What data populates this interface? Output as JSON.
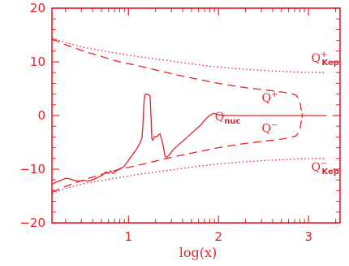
{
  "chart_data": {
    "type": "line",
    "title": "",
    "xlabel": "log(x)",
    "ylabel": "",
    "xlim": [
      0.15,
      3.35
    ],
    "ylim": [
      -20,
      20
    ],
    "xticks": [
      1,
      2,
      3
    ],
    "xtick_labels": [
      "1",
      "2",
      "3"
    ],
    "yticks": [
      -20,
      -10,
      0,
      10,
      20
    ],
    "ytick_labels": [
      "−20",
      "−10",
      "0",
      "10",
      "20"
    ],
    "grid": false,
    "legend": "none",
    "color": "#e8202a",
    "series": [
      {
        "key": "qkep_plus",
        "style": "dotted",
        "x": [
          0.15,
          0.3,
          0.5,
          0.8,
          1.1,
          1.4,
          1.7,
          2.0,
          2.3,
          2.6,
          2.8,
          2.95,
          3.1,
          3.2
        ],
        "y": [
          14.5,
          13.6,
          12.7,
          11.8,
          11.0,
          10.3,
          9.6,
          9.0,
          8.6,
          8.3,
          8.15,
          8.05,
          8.0,
          8.0
        ]
      },
      {
        "key": "qkep_minus",
        "style": "dotted",
        "x": [
          0.15,
          0.3,
          0.5,
          0.8,
          1.1,
          1.4,
          1.7,
          2.0,
          2.3,
          2.6,
          2.8,
          2.95,
          3.1,
          3.2
        ],
        "y": [
          -14.5,
          -13.6,
          -12.7,
          -11.8,
          -11.0,
          -10.3,
          -9.6,
          -9.0,
          -8.6,
          -8.3,
          -8.15,
          -8.05,
          -8.0,
          -8.0
        ]
      },
      {
        "key": "q_plus",
        "style": "dashed",
        "x": [
          0.15,
          0.3,
          0.5,
          0.7,
          0.9,
          1.1,
          1.3,
          1.5,
          1.7,
          1.9,
          2.1,
          2.3,
          2.5,
          2.7,
          2.8,
          2.86,
          2.88,
          2.9,
          2.91,
          2.92,
          2.93
        ],
        "y": [
          14.3,
          13.2,
          12.0,
          11.0,
          10.0,
          9.3,
          8.5,
          7.7,
          7.0,
          6.3,
          5.7,
          5.2,
          4.8,
          4.4,
          4.1,
          3.8,
          3.4,
          2.8,
          2.0,
          1.0,
          -0.4
        ]
      },
      {
        "key": "q_minus",
        "style": "dashed",
        "x": [
          0.15,
          0.3,
          0.5,
          0.7,
          0.9,
          1.1,
          1.3,
          1.5,
          1.7,
          1.9,
          2.1,
          2.3,
          2.5,
          2.7,
          2.8,
          2.86,
          2.88,
          2.9,
          2.91,
          2.92,
          2.93
        ],
        "y": [
          -14.3,
          -13.2,
          -12.0,
          -11.0,
          -10.0,
          -9.3,
          -8.5,
          -7.7,
          -7.0,
          -6.3,
          -5.7,
          -5.2,
          -4.8,
          -4.4,
          -4.1,
          -3.8,
          -3.4,
          -2.8,
          -2.0,
          -1.0,
          0.4
        ]
      },
      {
        "key": "q_nuc",
        "style": "solid",
        "x": [
          0.15,
          0.2,
          0.25,
          0.3,
          0.35,
          0.4,
          0.45,
          0.5,
          0.55,
          0.6,
          0.65,
          0.7,
          0.75,
          0.78,
          0.8,
          0.83,
          0.86,
          0.88,
          0.9,
          0.93,
          0.96,
          1.0,
          1.05,
          1.1,
          1.13,
          1.15,
          1.16,
          1.17,
          1.18,
          1.2,
          1.22,
          1.24,
          1.25,
          1.26,
          1.27,
          1.28,
          1.29,
          1.31,
          1.33,
          1.35,
          1.37,
          1.39,
          1.4,
          1.41,
          1.42,
          1.45,
          1.5,
          1.6,
          1.7,
          1.8,
          1.85,
          1.9,
          1.93,
          1.95,
          1.97,
          2.0,
          2.1,
          2.3,
          2.5,
          2.7,
          2.9,
          3.1,
          3.2
        ],
        "y": [
          -12.8,
          -12.4,
          -12.1,
          -11.7,
          -11.8,
          -12.1,
          -12.2,
          -12.1,
          -12.2,
          -12.0,
          -11.6,
          -11.2,
          -10.5,
          -10.8,
          -10.3,
          -10.8,
          -10.3,
          -10.2,
          -9.9,
          -9.7,
          -9.3,
          -8.3,
          -7.2,
          -6.0,
          -5.0,
          -4.2,
          -2.0,
          2.0,
          3.8,
          4.0,
          3.9,
          3.6,
          0.0,
          -4.3,
          -4.6,
          -4.2,
          -3.9,
          -4.0,
          -3.7,
          -3.4,
          -4.5,
          -6.0,
          -7.2,
          -7.6,
          -7.8,
          -7.4,
          -6.3,
          -4.8,
          -3.3,
          -1.8,
          -0.8,
          0.0,
          0.3,
          0.4,
          0.3,
          0.1,
          0.0,
          0.0,
          0.0,
          0.0,
          0.0,
          0.0,
          0.0
        ]
      }
    ],
    "annotations": [
      {
        "key": "qkep_plus",
        "main": "Q",
        "sup": "+",
        "sub": "Kep",
        "x": 3.03,
        "y": 10.0
      },
      {
        "key": "q_plus",
        "main": "Q",
        "sup": "+",
        "sub": "",
        "x": 2.48,
        "y": 2.6
      },
      {
        "key": "q_nuc",
        "main": "Q",
        "sup": "",
        "sub": "nuc",
        "x": 1.96,
        "y": -0.9
      },
      {
        "key": "q_minus",
        "main": "Q",
        "sup": "−",
        "sub": "",
        "x": 2.48,
        "y": -3.1
      },
      {
        "key": "qkep_minus",
        "main": "Q",
        "sup": "−",
        "sub": "Kep",
        "x": 3.03,
        "y": -10.3
      }
    ]
  }
}
